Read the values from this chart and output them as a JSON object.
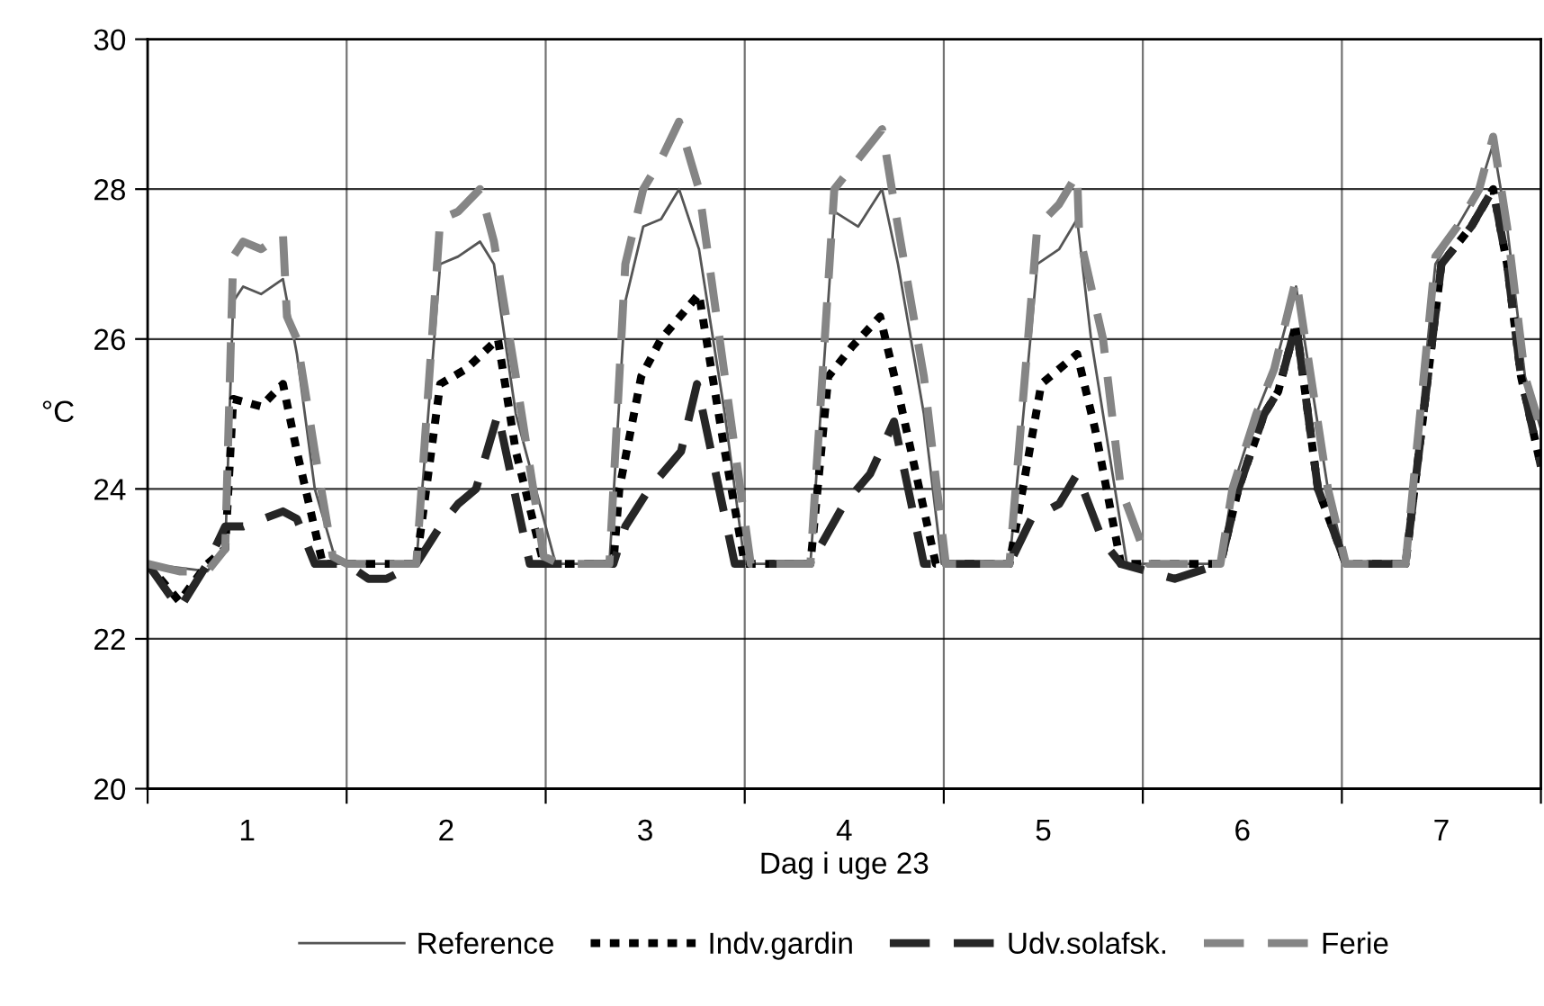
{
  "chart_data": {
    "type": "line",
    "xlabel": "Dag i uge 23",
    "ylabel": "°C",
    "xlim": [
      0,
      7
    ],
    "xticks": [
      {
        "value": 0,
        "label": null
      },
      {
        "value": 0.5,
        "label": "1"
      },
      {
        "value": 1,
        "label": null
      },
      {
        "value": 1.5,
        "label": "2"
      },
      {
        "value": 2,
        "label": null
      },
      {
        "value": 2.5,
        "label": "3"
      },
      {
        "value": 3,
        "label": null
      },
      {
        "value": 3.5,
        "label": "4"
      },
      {
        "value": 4,
        "label": null
      },
      {
        "value": 4.5,
        "label": "5"
      },
      {
        "value": 5,
        "label": null
      },
      {
        "value": 5.5,
        "label": "6"
      },
      {
        "value": 6,
        "label": null
      },
      {
        "value": 6.5,
        "label": "7"
      },
      {
        "value": 7,
        "label": null
      }
    ],
    "ylim": [
      20,
      30
    ],
    "yticks": [
      20,
      22,
      24,
      26,
      28,
      30
    ],
    "grid": true,
    "legend": "bottom",
    "marker": "none",
    "series": [
      {
        "name": "Reference",
        "color": "#555555",
        "line_style": "solid",
        "x": [
          0,
          0.3,
          0.39,
          0.43,
          0.48,
          0.57,
          0.68,
          0.75,
          0.84,
          0.95,
          1.0,
          1.2,
          1.35,
          1.47,
          1.56,
          1.67,
          1.74,
          1.85,
          2.05,
          2.32,
          2.4,
          2.49,
          2.58,
          2.67,
          2.77,
          2.9,
          3.0,
          3.33,
          3.45,
          3.57,
          3.69,
          3.77,
          3.9,
          3.99,
          4.33,
          4.47,
          4.58,
          4.67,
          4.74,
          4.92,
          5.03,
          5.39,
          5.45,
          5.57,
          5.66,
          5.77,
          5.93,
          6.02,
          6.32,
          6.47,
          6.58,
          6.69,
          6.76,
          6.83,
          6.92,
          7.0
        ],
        "values": [
          23.0,
          22.9,
          23.2,
          26.5,
          26.7,
          26.6,
          26.8,
          25.8,
          24.0,
          23.0,
          23.0,
          23.0,
          23.0,
          27.0,
          27.1,
          27.3,
          27.0,
          25.0,
          23.0,
          23.0,
          26.5,
          27.5,
          27.6,
          28.0,
          27.2,
          25.0,
          23.0,
          23.0,
          27.7,
          27.5,
          28.0,
          27.0,
          25.0,
          23.0,
          23.0,
          27.0,
          27.2,
          27.6,
          26.0,
          23.0,
          23.0,
          23.0,
          24.0,
          25.0,
          25.6,
          26.7,
          24.0,
          23.0,
          23.0,
          27.0,
          27.5,
          28.0,
          28.6,
          27.5,
          25.5,
          24.8
        ]
      },
      {
        "name": "Indv.gardin",
        "color": "#000000",
        "line_style": "dotted",
        "x": [
          0,
          0.16,
          0.3,
          0.39,
          0.43,
          0.57,
          0.68,
          0.75,
          0.88,
          1.0,
          1.35,
          1.47,
          1.6,
          1.76,
          1.85,
          1.99,
          2.34,
          2.37,
          2.48,
          2.58,
          2.77,
          2.9,
          3.0,
          3.33,
          3.42,
          3.54,
          3.68,
          3.77,
          3.96,
          4.33,
          4.35,
          4.49,
          4.67,
          4.76,
          4.89,
          5.03,
          5.39,
          5.48,
          5.61,
          5.68,
          5.77,
          5.88,
          6.02,
          6.32,
          6.5,
          6.65,
          6.76,
          6.83,
          6.9,
          7.0
        ],
        "values": [
          23.0,
          22.5,
          23.0,
          23.2,
          25.2,
          25.1,
          25.4,
          24.5,
          23.0,
          23.0,
          23.0,
          25.4,
          25.6,
          26.0,
          24.5,
          23.0,
          23.0,
          24.0,
          25.5,
          26.0,
          26.6,
          24.5,
          23.0,
          23.0,
          25.5,
          25.9,
          26.3,
          25.3,
          23.0,
          23.0,
          23.3,
          25.4,
          25.8,
          24.8,
          23.0,
          23.0,
          23.0,
          24.0,
          25.0,
          25.3,
          26.2,
          24.0,
          23.0,
          23.0,
          27.0,
          27.5,
          28.0,
          27.0,
          25.5,
          24.3
        ]
      },
      {
        "name": "Udv.solafsk.",
        "color": "#262626",
        "line_style": "dashed",
        "x": [
          0,
          0.16,
          0.3,
          0.39,
          0.48,
          0.68,
          0.75,
          0.84,
          1.0,
          1.11,
          1.2,
          1.35,
          1.47,
          1.56,
          1.65,
          1.76,
          1.92,
          2.05,
          2.34,
          2.4,
          2.52,
          2.68,
          2.76,
          2.95,
          3.0,
          3.33,
          3.5,
          3.63,
          3.75,
          3.9,
          4.01,
          4.33,
          4.44,
          4.58,
          4.67,
          4.8,
          4.89,
          5.16,
          5.39,
          5.48,
          5.61,
          5.68,
          5.77,
          5.88,
          6.02,
          6.32,
          6.5,
          6.65,
          6.76,
          6.83,
          6.9,
          7.0
        ],
        "values": [
          23.0,
          22.4,
          23.0,
          23.5,
          23.5,
          23.7,
          23.6,
          23.0,
          23.0,
          22.8,
          22.8,
          23.0,
          23.5,
          23.8,
          24.0,
          25.0,
          23.0,
          23.0,
          23.0,
          23.5,
          24.0,
          24.5,
          25.4,
          23.0,
          23.0,
          23.0,
          23.8,
          24.2,
          24.9,
          23.0,
          23.0,
          23.0,
          23.6,
          23.8,
          24.2,
          23.3,
          23.0,
          22.8,
          23.0,
          24.0,
          25.0,
          25.3,
          26.2,
          24.0,
          23.0,
          23.0,
          27.0,
          27.5,
          28.0,
          27.0,
          25.5,
          24.3
        ]
      },
      {
        "name": "Ferie",
        "color": "#858585",
        "line_style": "dashed",
        "x": [
          0,
          0.16,
          0.3,
          0.39,
          0.43,
          0.48,
          0.57,
          0.68,
          0.7,
          0.75,
          0.84,
          0.93,
          1.0,
          1.11,
          1.2,
          1.35,
          1.47,
          1.56,
          1.67,
          1.74,
          1.85,
          1.99,
          2.07,
          2.32,
          2.4,
          2.49,
          2.58,
          2.67,
          2.77,
          2.9,
          3.03,
          3.33,
          3.45,
          3.54,
          3.69,
          3.77,
          3.9,
          4.01,
          4.33,
          4.47,
          4.58,
          4.67,
          4.68,
          4.8,
          4.89,
          5.03,
          5.16,
          5.39,
          5.45,
          5.57,
          5.66,
          5.77,
          5.93,
          6.02,
          6.32,
          6.47,
          6.58,
          6.69,
          6.76,
          6.83,
          6.92,
          7.0
        ],
        "values": [
          23.0,
          22.9,
          22.9,
          23.2,
          27.1,
          27.3,
          27.2,
          27.4,
          26.3,
          26.0,
          24.5,
          23.1,
          23.0,
          23.0,
          23.0,
          23.0,
          27.6,
          27.7,
          28.0,
          27.3,
          25.5,
          23.1,
          23.0,
          23.0,
          27.0,
          28.0,
          28.4,
          28.9,
          28.0,
          25.5,
          23.0,
          23.0,
          28.0,
          28.3,
          28.8,
          27.5,
          25.5,
          23.0,
          23.0,
          27.5,
          27.8,
          28.2,
          27.4,
          26.0,
          24.0,
          23.0,
          23.0,
          23.0,
          24.0,
          25.0,
          25.6,
          26.8,
          24.0,
          23.0,
          23.0,
          27.1,
          27.5,
          28.0,
          28.7,
          27.5,
          25.5,
          24.8
        ]
      }
    ]
  }
}
